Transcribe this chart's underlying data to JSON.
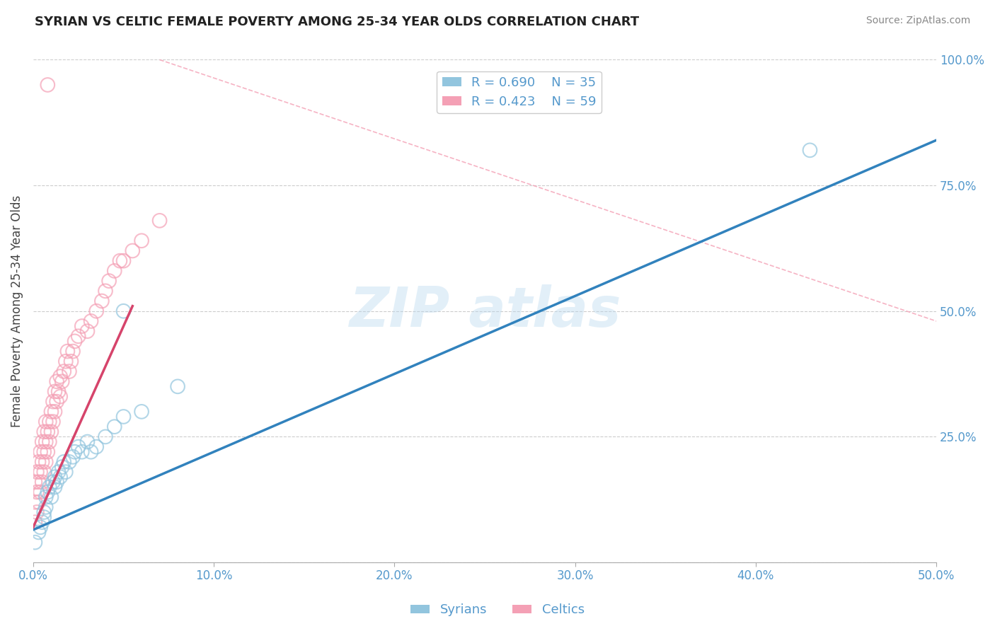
{
  "title": "SYRIAN VS CELTIC FEMALE POVERTY AMONG 25-34 YEAR OLDS CORRELATION CHART",
  "source": "Source: ZipAtlas.com",
  "ylabel": "Female Poverty Among 25-34 Year Olds",
  "xlim": [
    0.0,
    0.5
  ],
  "ylim": [
    0.0,
    1.0
  ],
  "xticks": [
    0.0,
    0.1,
    0.2,
    0.3,
    0.4,
    0.5
  ],
  "xticklabels": [
    "0.0%",
    "10.0%",
    "20.0%",
    "30.0%",
    "40.0%",
    "50.0%"
  ],
  "yticks": [
    0.0,
    0.25,
    0.5,
    0.75,
    1.0
  ],
  "yticklabels": [
    "",
    "25.0%",
    "50.0%",
    "75.0%",
    "100.0%"
  ],
  "legend_r_syrian": "R = 0.690",
  "legend_n_syrian": "N = 35",
  "legend_r_celtic": "R = 0.423",
  "legend_n_celtic": "N = 59",
  "color_syrian": "#92c5de",
  "color_celtic": "#f4a0b5",
  "color_trendline_syrian": "#3182bd",
  "color_trendline_celtic": "#d6446b",
  "color_ref_line": "#f4a0b5",
  "background_color": "#ffffff",
  "tick_color": "#5599cc",
  "syrians_x": [
    0.001,
    0.003,
    0.004,
    0.005,
    0.006,
    0.006,
    0.007,
    0.007,
    0.008,
    0.009,
    0.01,
    0.011,
    0.012,
    0.012,
    0.013,
    0.014,
    0.015,
    0.016,
    0.017,
    0.018,
    0.02,
    0.022,
    0.023,
    0.025,
    0.027,
    0.03,
    0.032,
    0.035,
    0.04,
    0.045,
    0.05,
    0.06,
    0.08,
    0.43,
    0.05
  ],
  "syrians_y": [
    0.04,
    0.06,
    0.07,
    0.08,
    0.09,
    0.1,
    0.11,
    0.13,
    0.14,
    0.15,
    0.13,
    0.16,
    0.15,
    0.17,
    0.16,
    0.18,
    0.17,
    0.19,
    0.2,
    0.18,
    0.2,
    0.21,
    0.22,
    0.23,
    0.22,
    0.24,
    0.22,
    0.23,
    0.25,
    0.27,
    0.29,
    0.3,
    0.35,
    0.82,
    0.5
  ],
  "celtics_x": [
    0.001,
    0.001,
    0.001,
    0.002,
    0.002,
    0.002,
    0.003,
    0.003,
    0.003,
    0.004,
    0.004,
    0.004,
    0.005,
    0.005,
    0.005,
    0.006,
    0.006,
    0.006,
    0.007,
    0.007,
    0.007,
    0.008,
    0.008,
    0.009,
    0.009,
    0.01,
    0.01,
    0.011,
    0.011,
    0.012,
    0.012,
    0.013,
    0.013,
    0.014,
    0.015,
    0.015,
    0.016,
    0.017,
    0.018,
    0.019,
    0.02,
    0.021,
    0.022,
    0.023,
    0.025,
    0.027,
    0.03,
    0.032,
    0.035,
    0.038,
    0.04,
    0.042,
    0.045,
    0.048,
    0.05,
    0.055,
    0.06,
    0.07,
    0.008
  ],
  "celtics_y": [
    0.08,
    0.12,
    0.16,
    0.1,
    0.14,
    0.18,
    0.12,
    0.16,
    0.2,
    0.14,
    0.18,
    0.22,
    0.16,
    0.2,
    0.24,
    0.18,
    0.22,
    0.26,
    0.2,
    0.24,
    0.28,
    0.22,
    0.26,
    0.24,
    0.28,
    0.26,
    0.3,
    0.28,
    0.32,
    0.3,
    0.34,
    0.32,
    0.36,
    0.34,
    0.33,
    0.37,
    0.36,
    0.38,
    0.4,
    0.42,
    0.38,
    0.4,
    0.42,
    0.44,
    0.45,
    0.47,
    0.46,
    0.48,
    0.5,
    0.52,
    0.54,
    0.56,
    0.58,
    0.6,
    0.6,
    0.62,
    0.64,
    0.68,
    0.95
  ],
  "ref_line_x": [
    0.07,
    0.5
  ],
  "ref_line_y": [
    1.0,
    0.48
  ],
  "celtic_trend_x": [
    0.0,
    0.055
  ],
  "celtic_trend_slope": 8.0,
  "celtic_trend_intercept": 0.07,
  "syrian_trend_x": [
    0.0,
    0.5
  ],
  "syrian_trend_slope": 1.55,
  "syrian_trend_intercept": 0.065
}
